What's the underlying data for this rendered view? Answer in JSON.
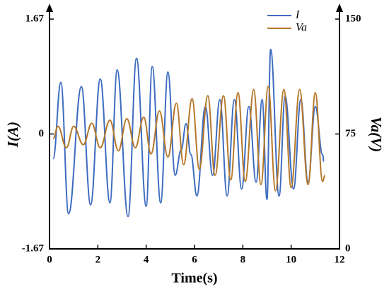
{
  "chart_data": {
    "type": "line",
    "x_label": "Time(s)",
    "y_label": "I(A)",
    "y2_label": "Va(V)",
    "xlim": [
      0,
      12
    ],
    "xticks": [
      0,
      2,
      4,
      6,
      8,
      10,
      12
    ],
    "ylim": [
      -1.67,
      1.67
    ],
    "yticks": [
      -1.67,
      0,
      1.67
    ],
    "y2lim": [
      0,
      150
    ],
    "y2ticks": [
      0,
      75,
      150
    ],
    "legend": "upper right",
    "series": [
      {
        "name": "I",
        "color": "#3d6cc0",
        "x": [
          0.15,
          0.47,
          0.79,
          1.32,
          1.7,
          2.1,
          2.5,
          2.8,
          3.25,
          3.6,
          4.0,
          4.25,
          4.6,
          4.9,
          5.2,
          5.45,
          5.65,
          5.85,
          6.1,
          6.45,
          6.75,
          7.05,
          7.35,
          7.65,
          7.95,
          8.25,
          8.55,
          8.8,
          9.0,
          9.15,
          9.5,
          9.75,
          10.1,
          10.4,
          10.7,
          11.0,
          11.3,
          11.35
        ],
        "values": [
          -0.36,
          0.75,
          -1.16,
          0.69,
          -1.03,
          0.8,
          -1.0,
          0.93,
          -1.2,
          1.1,
          -1.05,
          0.98,
          -1.0,
          0.9,
          -0.6,
          -0.23,
          0.15,
          -0.3,
          -0.9,
          0.4,
          -0.6,
          0.5,
          -0.9,
          0.5,
          -0.8,
          0.4,
          -0.7,
          0.5,
          -0.95,
          1.23,
          -0.9,
          0.55,
          -0.8,
          0.5,
          -0.7,
          0.4,
          -0.3,
          -0.4
        ]
      },
      {
        "name": "Va",
        "color": "#b5782a",
        "axis": "y2",
        "x": [
          0.15,
          0.35,
          0.7,
          1.0,
          1.4,
          1.75,
          2.1,
          2.5,
          2.85,
          3.2,
          3.55,
          3.9,
          4.2,
          4.55,
          4.9,
          5.25,
          5.55,
          5.9,
          6.2,
          6.55,
          6.85,
          7.2,
          7.5,
          7.8,
          8.1,
          8.45,
          8.75,
          9.05,
          9.35,
          9.7,
          10.0,
          10.35,
          10.7,
          11.0,
          11.3,
          11.4
        ],
        "values": [
          72,
          80,
          66,
          80,
          68,
          82,
          66,
          84,
          64,
          85,
          66,
          86,
          62,
          90,
          60,
          95,
          55,
          98,
          52,
          100,
          48,
          100,
          45,
          102,
          44,
          104,
          42,
          106,
          38,
          104,
          40,
          104,
          42,
          102,
          44,
          48
        ]
      }
    ]
  }
}
